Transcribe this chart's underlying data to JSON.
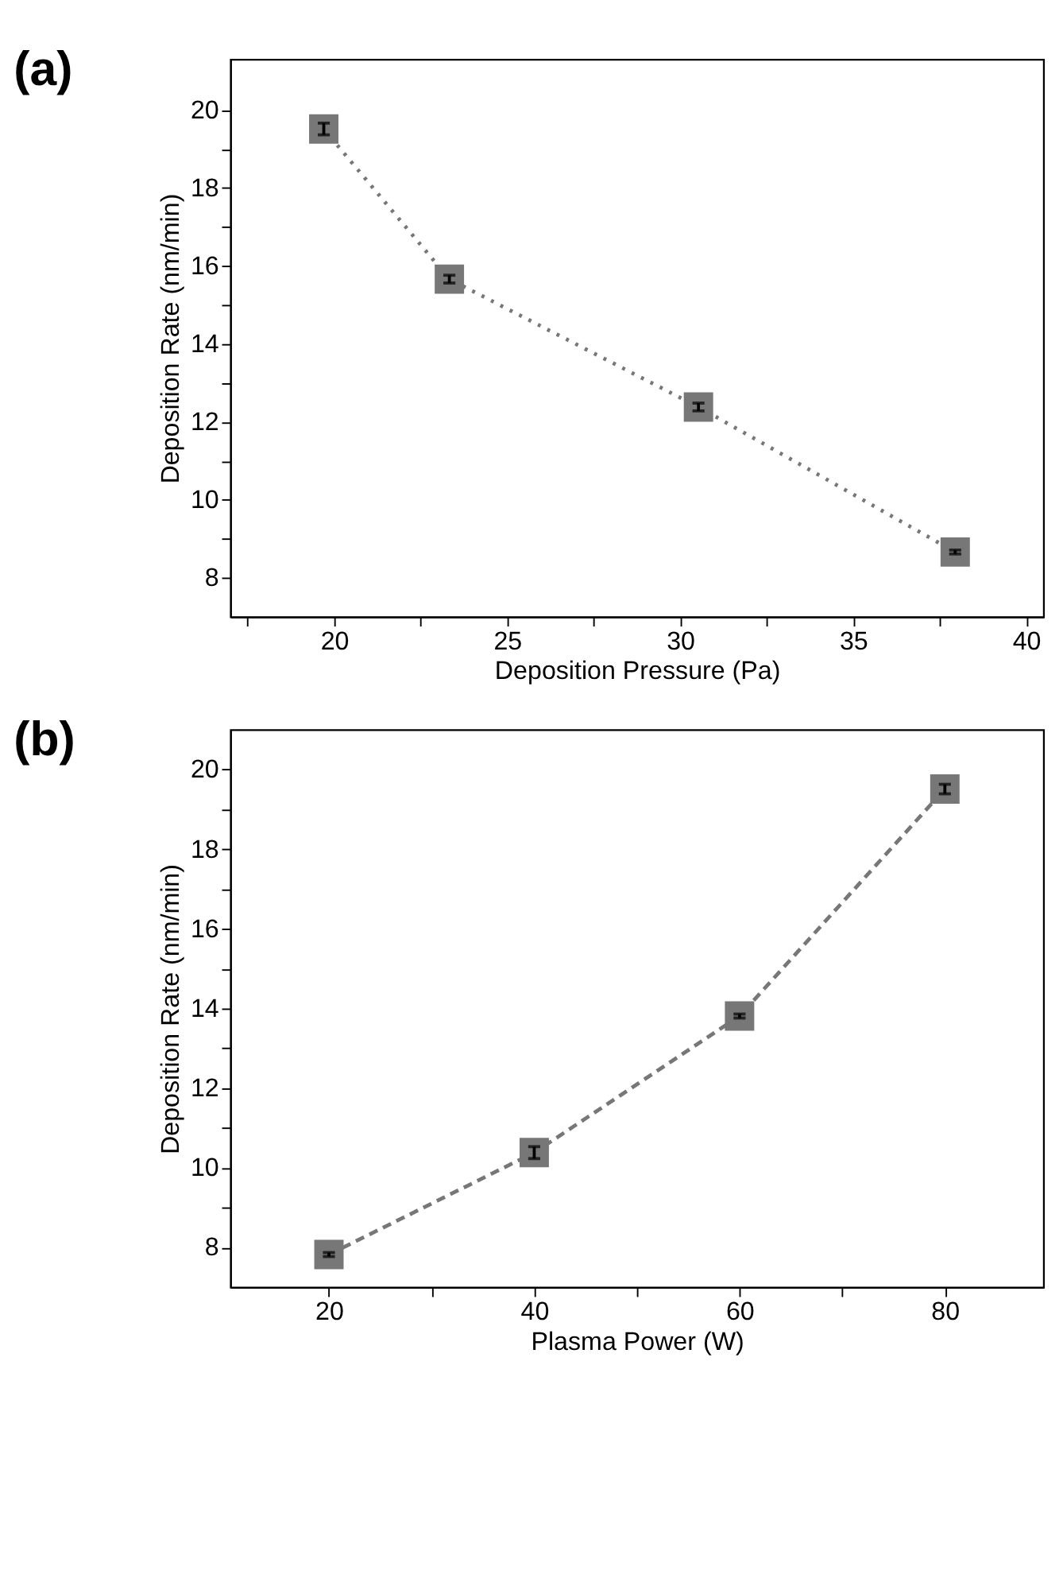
{
  "chart_data": [
    {
      "type": "line",
      "title": "(a)",
      "xlabel": "Deposition Pressure (Pa)",
      "ylabel": "Deposition Rate (nm/min)",
      "x": [
        19.7,
        23.33,
        30.53,
        37.95
      ],
      "series": [
        {
          "color": "#777777",
          "values": [
            19.51,
            15.66,
            12.38,
            8.66
          ],
          "errors": [
            0.15,
            0.1,
            0.1,
            0.05
          ]
        }
      ],
      "marker": "square",
      "line_style": "dotted",
      "grid": false,
      "xlim": [
        17,
        40.5
      ],
      "xticks": [
        {
          "value": 17.5,
          "label": null
        },
        20,
        {
          "value": 22.5,
          "label": null
        },
        25,
        {
          "value": 27.5,
          "label": null
        },
        30,
        {
          "value": 32.5,
          "label": null
        },
        35,
        {
          "value": 37.5,
          "label": null
        },
        40
      ],
      "ylim": [
        7,
        21.3
      ],
      "yticks": [
        8,
        {
          "value": 9,
          "label": null
        },
        10,
        {
          "value": 11,
          "label": null
        },
        12,
        {
          "value": 13,
          "label": null
        },
        14,
        {
          "value": 15,
          "label": null
        },
        16,
        {
          "value": 17,
          "label": null
        },
        18,
        {
          "value": 19,
          "label": null
        },
        20
      ]
    },
    {
      "type": "line",
      "title": "(b)",
      "xlabel": "Plasma Power (W)",
      "ylabel": "Deposition Rate (nm/min)",
      "x": [
        20,
        40,
        60,
        80
      ],
      "series": [
        {
          "color": "#777777",
          "values": [
            7.82,
            10.38,
            13.81,
            19.51
          ],
          "errors": [
            0.05,
            0.15,
            0.05,
            0.12
          ]
        }
      ],
      "marker": "square",
      "line_style": "dashed",
      "grid": false,
      "xlim": [
        10.4,
        89.6
      ],
      "xticks": [
        20,
        {
          "value": 30,
          "label": null
        },
        40,
        {
          "value": 50,
          "label": null
        },
        60,
        {
          "value": 70,
          "label": null
        },
        80
      ],
      "ylim": [
        7,
        21
      ],
      "yticks": [
        8,
        {
          "value": 9,
          "label": null
        },
        10,
        {
          "value": 11,
          "label": null
        },
        12,
        {
          "value": 13,
          "label": null
        },
        14,
        {
          "value": 15,
          "label": null
        },
        16,
        {
          "value": 17,
          "label": null
        },
        18,
        {
          "value": 19,
          "label": null
        },
        20
      ]
    }
  ]
}
